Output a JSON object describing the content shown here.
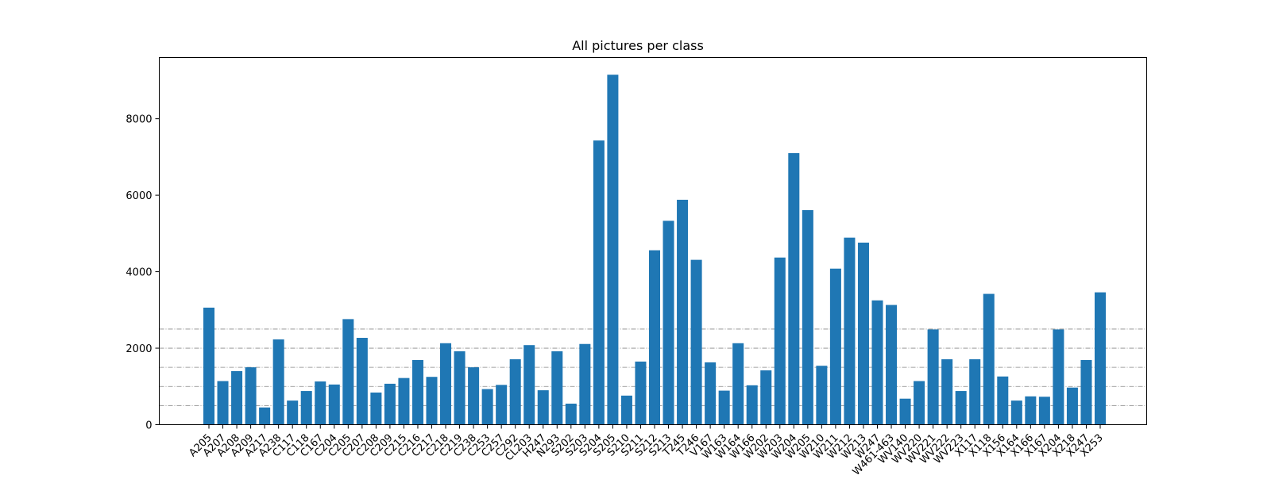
{
  "chart_data": {
    "type": "bar",
    "title": "All pictures per class",
    "xlabel": "",
    "ylabel": "",
    "ylim": [
      0,
      9600
    ],
    "yticks": [
      0,
      2000,
      4000,
      6000,
      8000
    ],
    "reference_lines": [
      500,
      1000,
      1500,
      2000,
      2500
    ],
    "grid": false,
    "bar_color": "#1f77b4",
    "categories": [
      "A205",
      "A207",
      "A208",
      "A209",
      "A217",
      "A238",
      "C117",
      "C118",
      "C167",
      "C204",
      "C205",
      "C207",
      "C208",
      "C209",
      "C215",
      "C216",
      "C217",
      "C218",
      "C219",
      "C238",
      "C253",
      "C257",
      "C292",
      "CL203",
      "H247",
      "N293",
      "S202",
      "S203",
      "S204",
      "S205",
      "S210",
      "S211",
      "S212",
      "S213",
      "T245",
      "T246",
      "V167",
      "W163",
      "W164",
      "W166",
      "W202",
      "W203",
      "W204",
      "W205",
      "W210",
      "W211",
      "W212",
      "W213",
      "W247",
      "W461-463",
      "WV140",
      "WV220",
      "WV221",
      "WV222",
      "WV223",
      "X117",
      "X118",
      "X156",
      "X164",
      "X166",
      "X167",
      "X204",
      "X218",
      "X247",
      "X253"
    ],
    "values": [
      3060,
      1140,
      1400,
      1500,
      450,
      2230,
      630,
      880,
      1130,
      1050,
      2760,
      2270,
      840,
      1070,
      1220,
      1690,
      1250,
      2130,
      1920,
      1500,
      930,
      1040,
      1710,
      2080,
      900,
      1920,
      550,
      2110,
      7430,
      9150,
      760,
      1650,
      4560,
      5330,
      5880,
      4310,
      1630,
      890,
      2130,
      1030,
      1420,
      4370,
      7100,
      5610,
      1540,
      4080,
      4890,
      4760,
      3250,
      3130,
      680,
      1140,
      2490,
      1710,
      880,
      1710,
      3420,
      1260,
      630,
      740,
      730,
      2490,
      970,
      1690,
      3460
    ]
  }
}
